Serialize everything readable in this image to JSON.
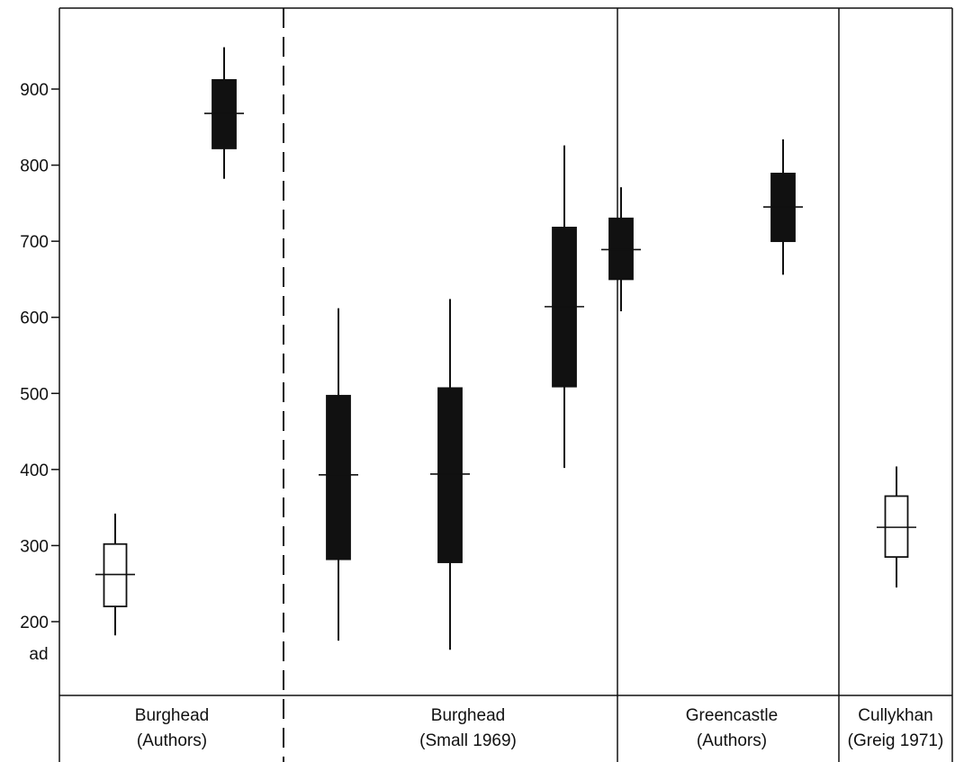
{
  "chart_data": {
    "type": "boxplot",
    "title": "",
    "xlabel": "",
    "ylabel": "",
    "y_unit_label": "ad",
    "ylim": [
      100,
      1000
    ],
    "yticks": [
      200,
      300,
      400,
      500,
      600,
      700,
      800,
      900
    ],
    "grid": false,
    "groups": [
      {
        "line1": "Burghead",
        "line2": "(Authors)"
      },
      {
        "line1": "Burghead",
        "line2": "(Small 1969)"
      },
      {
        "line1": "Greencastle",
        "line2": "(Authors)"
      },
      {
        "line1": "Cullykhan",
        "line2": "(Greig 1971)"
      }
    ],
    "dates": [
      {
        "group": 0,
        "fill": "open",
        "low": 182,
        "box_low": 220,
        "mid": 262,
        "box_high": 302,
        "high": 342
      },
      {
        "group": 0,
        "fill": "solid",
        "low": 782,
        "box_low": 822,
        "mid": 868,
        "box_high": 912,
        "high": 955
      },
      {
        "group": 1,
        "fill": "solid",
        "low": 175,
        "box_low": 282,
        "mid": 393,
        "box_high": 497,
        "high": 612
      },
      {
        "group": 1,
        "fill": "solid",
        "low": 163,
        "box_low": 278,
        "mid": 394,
        "box_high": 507,
        "high": 624
      },
      {
        "group": 1,
        "fill": "solid",
        "low": 402,
        "box_low": 509,
        "mid": 614,
        "box_high": 718,
        "high": 826
      },
      {
        "group": 2,
        "fill": "solid",
        "low": 608,
        "box_low": 650,
        "mid": 689,
        "box_high": 730,
        "high": 771
      },
      {
        "group": 2,
        "fill": "solid",
        "low": 656,
        "box_low": 700,
        "mid": 745,
        "box_high": 789,
        "high": 834
      },
      {
        "group": 3,
        "fill": "open",
        "low": 245,
        "box_low": 285,
        "mid": 324,
        "box_high": 365,
        "high": 404
      }
    ]
  }
}
